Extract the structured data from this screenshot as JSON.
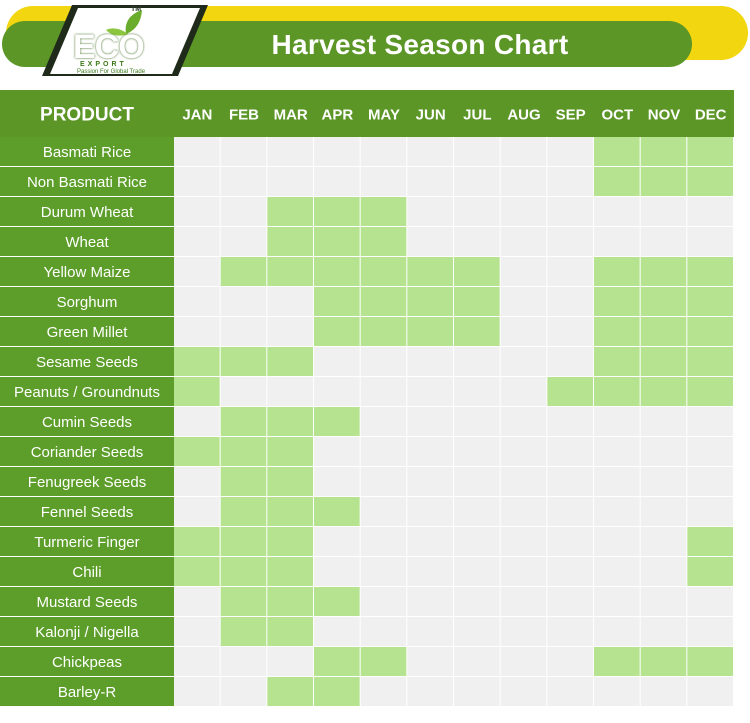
{
  "header": {
    "title": "Harvest Season Chart",
    "logo": {
      "brand": "ECO",
      "subtitle": "EXPORT",
      "tagline": "Passion For Global Trade",
      "trademark": "TM"
    }
  },
  "colors": {
    "header_green": "#5b9627",
    "row_green": "#5d9e2a",
    "harvest_cell": "#b6e38f",
    "empty_cell": "#f0f0f0",
    "accent_yellow": "#f2d60f"
  },
  "chart_data": {
    "type": "table",
    "product_header": "PRODUCT",
    "months": [
      "JAN",
      "FEB",
      "MAR",
      "APR",
      "MAY",
      "JUN",
      "JUL",
      "AUG",
      "SEP",
      "OCT",
      "NOV",
      "DEC"
    ],
    "rows": [
      {
        "product": "Basmati Rice",
        "harvest": [
          0,
          0,
          0,
          0,
          0,
          0,
          0,
          0,
          0,
          1,
          1,
          1
        ]
      },
      {
        "product": "Non Basmati Rice",
        "harvest": [
          0,
          0,
          0,
          0,
          0,
          0,
          0,
          0,
          0,
          1,
          1,
          1
        ]
      },
      {
        "product": "Durum Wheat",
        "harvest": [
          0,
          0,
          1,
          1,
          1,
          0,
          0,
          0,
          0,
          0,
          0,
          0
        ]
      },
      {
        "product": "Wheat",
        "harvest": [
          0,
          0,
          1,
          1,
          1,
          0,
          0,
          0,
          0,
          0,
          0,
          0
        ]
      },
      {
        "product": "Yellow Maize",
        "harvest": [
          0,
          1,
          1,
          1,
          1,
          1,
          1,
          0,
          0,
          1,
          1,
          1
        ]
      },
      {
        "product": "Sorghum",
        "harvest": [
          0,
          0,
          0,
          1,
          1,
          1,
          1,
          0,
          0,
          1,
          1,
          1
        ]
      },
      {
        "product": "Green Millet",
        "harvest": [
          0,
          0,
          0,
          1,
          1,
          1,
          1,
          0,
          0,
          1,
          1,
          1
        ]
      },
      {
        "product": "Sesame Seeds",
        "harvest": [
          1,
          1,
          1,
          0,
          0,
          0,
          0,
          0,
          0,
          1,
          1,
          1
        ]
      },
      {
        "product": "Peanuts / Groundnuts",
        "harvest": [
          1,
          0,
          0,
          0,
          0,
          0,
          0,
          0,
          1,
          1,
          1,
          1
        ]
      },
      {
        "product": "Cumin Seeds",
        "harvest": [
          0,
          1,
          1,
          1,
          0,
          0,
          0,
          0,
          0,
          0,
          0,
          0
        ]
      },
      {
        "product": "Coriander Seeds",
        "harvest": [
          1,
          1,
          1,
          0,
          0,
          0,
          0,
          0,
          0,
          0,
          0,
          0
        ]
      },
      {
        "product": "Fenugreek Seeds",
        "harvest": [
          0,
          1,
          1,
          0,
          0,
          0,
          0,
          0,
          0,
          0,
          0,
          0
        ]
      },
      {
        "product": "Fennel Seeds",
        "harvest": [
          0,
          1,
          1,
          1,
          0,
          0,
          0,
          0,
          0,
          0,
          0,
          0
        ]
      },
      {
        "product": "Turmeric Finger",
        "harvest": [
          1,
          1,
          1,
          0,
          0,
          0,
          0,
          0,
          0,
          0,
          0,
          1
        ]
      },
      {
        "product": "Chili",
        "harvest": [
          1,
          1,
          1,
          0,
          0,
          0,
          0,
          0,
          0,
          0,
          0,
          1
        ]
      },
      {
        "product": "Mustard Seeds",
        "harvest": [
          0,
          1,
          1,
          1,
          0,
          0,
          0,
          0,
          0,
          0,
          0,
          0
        ]
      },
      {
        "product": "Kalonji / Nigella",
        "harvest": [
          0,
          1,
          1,
          0,
          0,
          0,
          0,
          0,
          0,
          0,
          0,
          0
        ]
      },
      {
        "product": "Chickpeas",
        "harvest": [
          0,
          0,
          0,
          1,
          1,
          0,
          0,
          0,
          0,
          1,
          1,
          1
        ]
      },
      {
        "product": "Barley-R",
        "harvest": [
          0,
          0,
          1,
          1,
          0,
          0,
          0,
          0,
          0,
          0,
          0,
          0
        ]
      }
    ]
  }
}
